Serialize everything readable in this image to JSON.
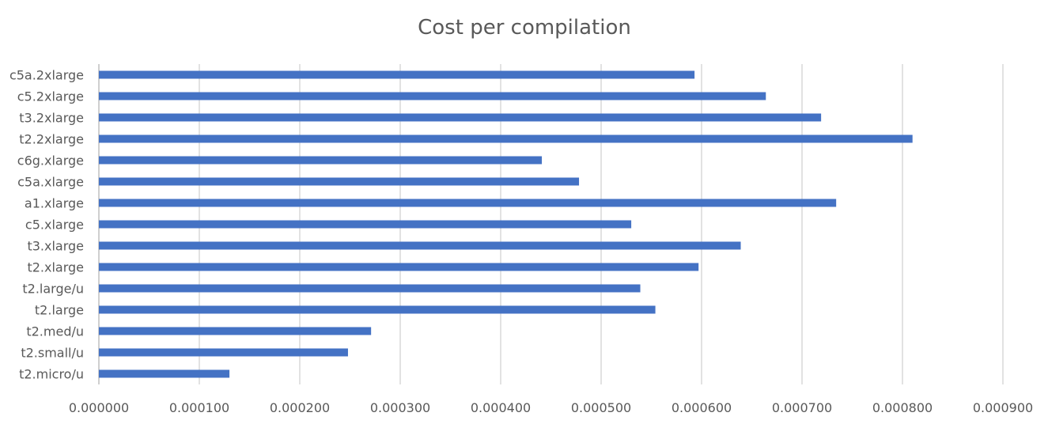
{
  "chart_data": {
    "type": "bar",
    "orientation": "horizontal",
    "title": "Cost per compilation",
    "xlabel": "",
    "ylabel": "",
    "categories": [
      "c5a.2xlarge",
      "c5.2xlarge",
      "t3.2xlarge",
      "t2.2xlarge",
      "c6g.xlarge",
      "c5a.xlarge",
      "a1.xlarge",
      "c5.xlarge",
      "t3.xlarge",
      "t2.xlarge",
      "t2.large/u",
      "t2.large",
      "t2.med/u",
      "t2.small/u",
      "t2.micro/u"
    ],
    "values": [
      0.000593,
      0.000664,
      0.000719,
      0.00081,
      0.000441,
      0.000478,
      0.000734,
      0.00053,
      0.000639,
      0.000597,
      0.000539,
      0.000554,
      0.000271,
      0.000248,
      0.00013
    ],
    "xlim": [
      0,
      0.0009
    ],
    "x_ticks": [
      "0.000000",
      "0.000100",
      "0.000200",
      "0.000300",
      "0.000400",
      "0.000500",
      "0.000600",
      "0.000700",
      "0.000800",
      "0.000900"
    ],
    "grid": true,
    "legend": "none",
    "bar_color": "#4472C4"
  }
}
